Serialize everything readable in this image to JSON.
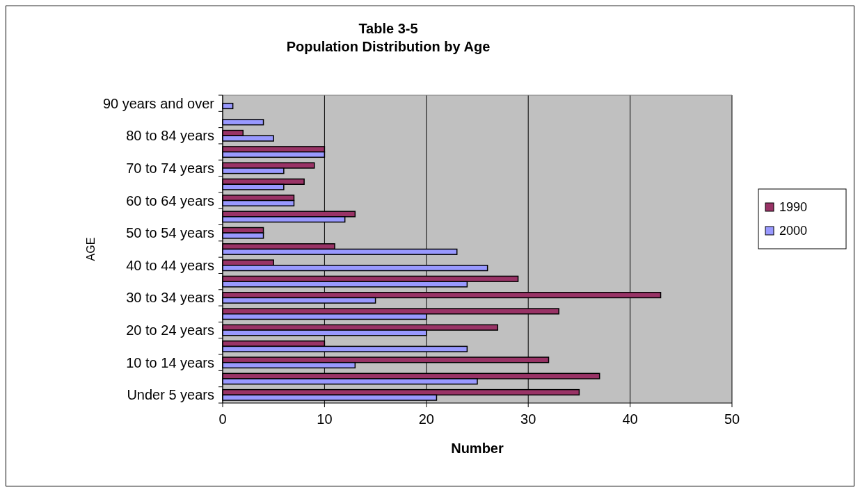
{
  "chart_data": {
    "type": "bar",
    "orientation": "horizontal",
    "title": "Table 3-5",
    "subtitle": "Population Distribution by Age",
    "xlabel": "Number",
    "ylabel": "AGE",
    "categories": [
      "90 years and over",
      null,
      "80 to 84 years",
      null,
      "70 to 74 years",
      null,
      "60 to 64 years",
      null,
      "50 to 54 years",
      null,
      "40 to 44 years",
      null,
      "30 to 34 years",
      null,
      "20 to 24 years",
      null,
      "10 to 14 years",
      null,
      "Under 5 years"
    ],
    "series": [
      {
        "name": "1990",
        "color": "#993366",
        "values": [
          null,
          null,
          2,
          10,
          9,
          8,
          7,
          13,
          4,
          11,
          5,
          29,
          43,
          33,
          27,
          10,
          32,
          37,
          35
        ]
      },
      {
        "name": "2000",
        "color": "#9999ff",
        "values": [
          1,
          4,
          5,
          10,
          6,
          6,
          7,
          12,
          4,
          23,
          26,
          24,
          15,
          20,
          20,
          24,
          13,
          25,
          21
        ]
      }
    ],
    "xlim": [
      0,
      50
    ],
    "xticks": [
      0,
      10,
      20,
      30,
      40,
      50
    ],
    "grid": "x",
    "legend": "right"
  }
}
